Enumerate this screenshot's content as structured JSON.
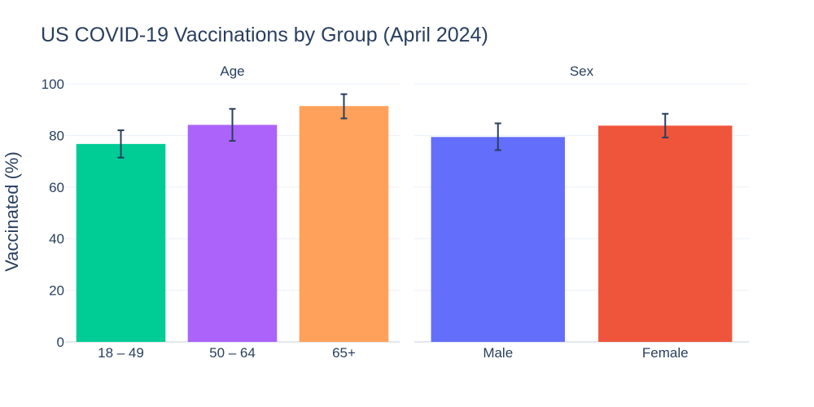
{
  "chart_data": {
    "type": "bar",
    "title": "US COVID-19 Vaccinations by Group (April 2024)",
    "ylabel": "Vaccinated (%)",
    "ylim": [
      0,
      100
    ],
    "yticks": [
      0,
      20,
      40,
      60,
      80,
      100
    ],
    "grid": true,
    "panels": [
      {
        "title": "Age",
        "categories": [
          "18 – 49",
          "50 – 64",
          "65+"
        ],
        "values": [
          76.7,
          84.1,
          91.4
        ],
        "error_plus": [
          5.3,
          6.2,
          4.6
        ],
        "error_minus": [
          5.3,
          6.2,
          4.8
        ],
        "colors": [
          "#00cc96",
          "#ab63fa",
          "#ffa15a"
        ]
      },
      {
        "title": "Sex",
        "categories": [
          "Male",
          "Female"
        ],
        "values": [
          79.4,
          83.8
        ],
        "error_plus": [
          5.3,
          4.6
        ],
        "error_minus": [
          5.1,
          4.6
        ],
        "colors": [
          "#636efa",
          "#ef553b"
        ]
      }
    ]
  }
}
